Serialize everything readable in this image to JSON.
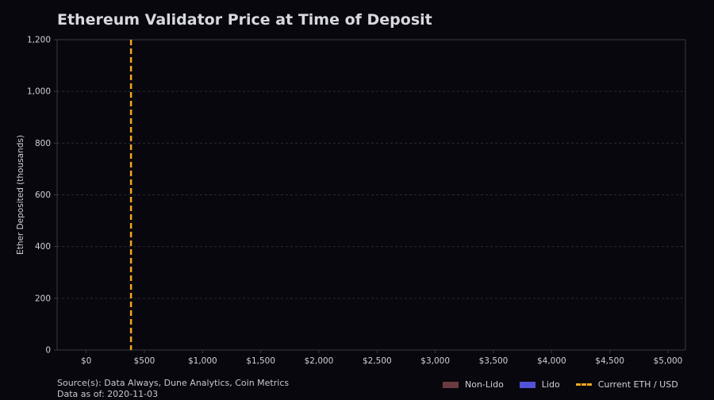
{
  "chart_data": {
    "type": "bar",
    "title": "Ethereum Validator Price at Time of Deposit",
    "xlabel": "",
    "ylabel": "Ether Deposited (thousands)",
    "xlim": [
      -250,
      5150
    ],
    "ylim": [
      0,
      1200
    ],
    "x_ticks": [
      0,
      500,
      1000,
      1500,
      2000,
      2500,
      3000,
      3500,
      4000,
      4500,
      5000
    ],
    "x_tick_labels": [
      "$0",
      "$500",
      "$1,000",
      "$1,500",
      "$2,000",
      "$2,500",
      "$3,000",
      "$3,500",
      "$4,000",
      "$4,500",
      "$5,000"
    ],
    "y_ticks": [
      0,
      200,
      400,
      600,
      800,
      1000,
      1200
    ],
    "y_tick_labels": [
      "0",
      "200",
      "400",
      "600",
      "800",
      "1,000",
      "1,200"
    ],
    "grid": "horizontal dashed",
    "series": [
      {
        "name": "Non-Lido",
        "color": "#6b3a40",
        "values": []
      },
      {
        "name": "Lido",
        "color": "#5252d8",
        "values": []
      }
    ],
    "reference_line": {
      "name": "Current ETH / USD",
      "x": 385,
      "color": "#f5a623",
      "style": "dashed"
    },
    "legend_position": "bottom-right"
  },
  "footer": {
    "source": "Source(s): Data Always, Dune Analytics, Coin Metrics",
    "data_as_of": "Data as of: 2020-11-03"
  },
  "colors": {
    "background": "#08070d",
    "axis": "#3a3a48",
    "grid": "#2a2a36",
    "text": "#d0d0d8"
  }
}
